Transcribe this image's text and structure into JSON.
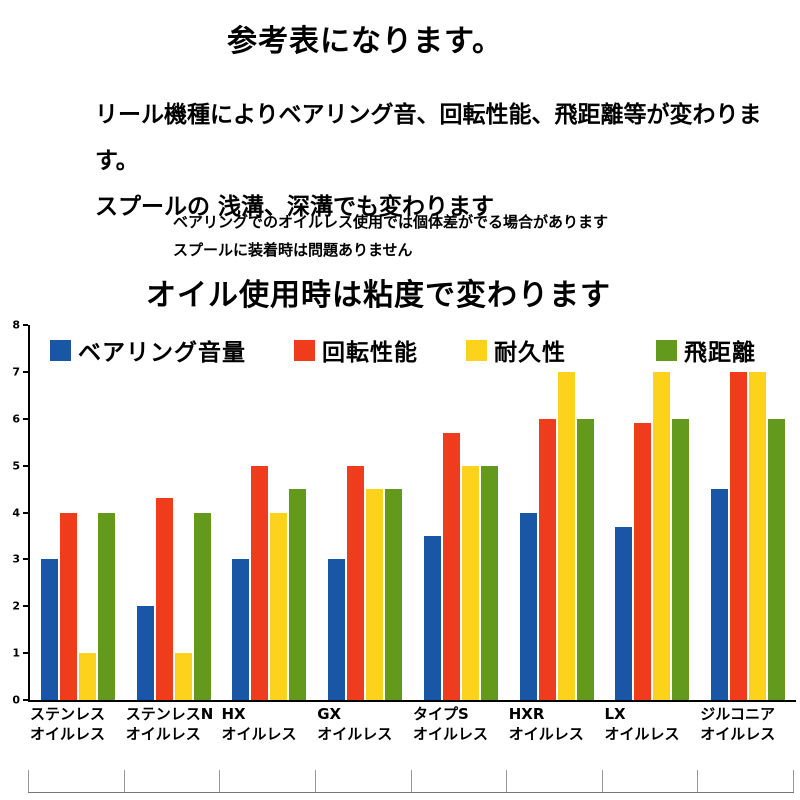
{
  "page": {
    "title": "参考表になります。",
    "note_line1": "リール機種によりベアリング音、回転性能、飛距離等が変わります。",
    "note_line2": "スプールの 浅溝、深溝でも変わります",
    "small_note_line1": "ベアリングでのオイルレス使用では個体差がでる場合があります",
    "small_note_line2": "スプールに装着時は問題ありません",
    "big_note": "オイル使用時は粘度で変わります"
  },
  "chart_data": {
    "type": "bar",
    "title": "",
    "xlabel": "",
    "ylabel": "",
    "ylim": [
      0,
      8
    ],
    "yticks": [
      0,
      1,
      2,
      3,
      4,
      5,
      6,
      7,
      8
    ],
    "grid": false,
    "legend_position": "top-inside",
    "categories": [
      "ステンレス\nオイルレス",
      "ステンレスN\nオイルレス",
      "HX\nオイルレス",
      "GX\nオイルレス",
      "タイプS\nオイルレス",
      "HXR\nオイルレス",
      "LX\nオイルレス",
      "ジルコニア\nオイルレス"
    ],
    "series": [
      {
        "name": "ベアリング音量",
        "color": "#1956a5",
        "values": [
          3,
          2,
          3,
          3,
          3.5,
          4,
          3.7,
          4.5
        ]
      },
      {
        "name": "回転性能",
        "color": "#ee3c1d",
        "values": [
          4,
          4.3,
          5,
          5,
          5.7,
          6,
          5.9,
          7
        ]
      },
      {
        "name": "耐久性",
        "color": "#fcd21c",
        "values": [
          1,
          1,
          4,
          4.5,
          5,
          7,
          7,
          7
        ]
      },
      {
        "name": "飛距離",
        "color": "#63991d",
        "values": [
          4,
          4,
          4.5,
          4.5,
          5,
          6,
          6,
          6
        ]
      }
    ]
  }
}
